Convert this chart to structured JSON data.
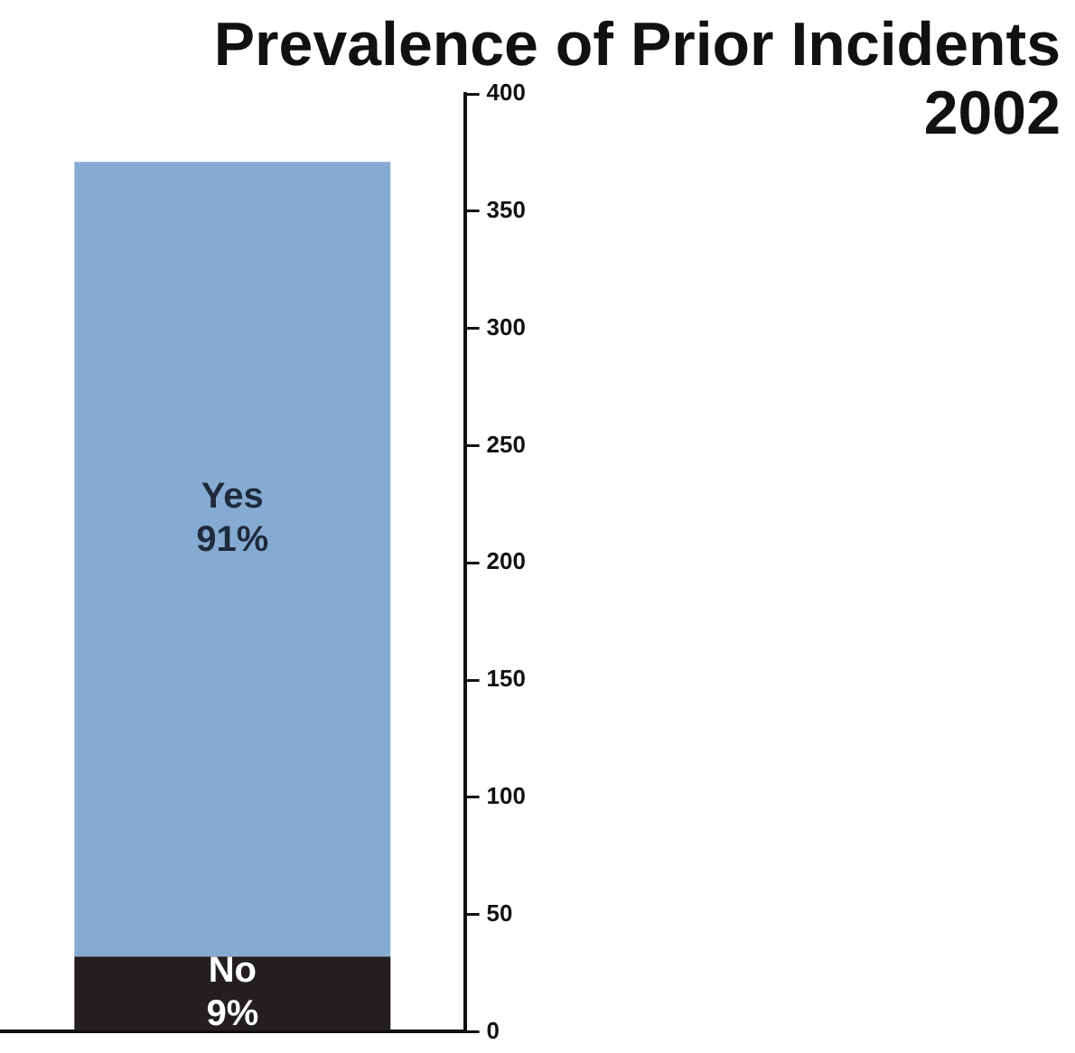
{
  "chart_data": {
    "type": "bar",
    "title": "Prevalence of Prior Incidents",
    "subtitle": "2002",
    "categories": [
      null
    ],
    "stacked": true,
    "series": [
      {
        "name": "No",
        "color": "#231f20",
        "values": [
          32
        ]
      },
      {
        "name": "Yes",
        "color": "#86abd3",
        "values": [
          339
        ]
      }
    ],
    "annotations": [
      "9%",
      "91%"
    ],
    "ylim": [
      0,
      400
    ],
    "yticks": [
      0,
      50,
      100,
      150,
      200,
      250,
      300,
      350,
      400
    ],
    "tick_labels": "y",
    "grid": false,
    "legend": false
  }
}
